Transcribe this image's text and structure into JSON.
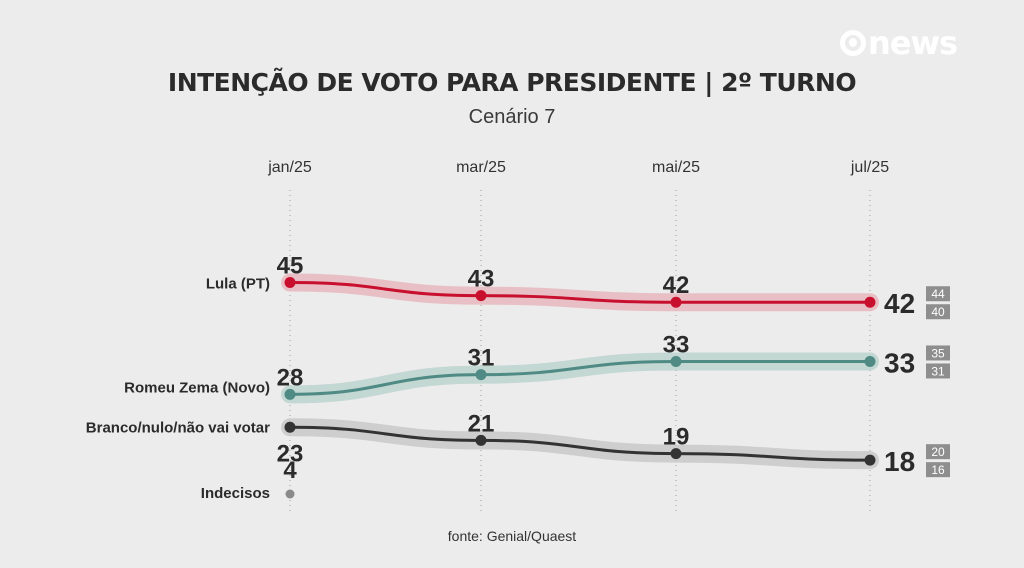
{
  "logo": {
    "text": "news"
  },
  "chart_data": {
    "type": "line",
    "title": "INTENÇÃO DE VOTO PARA PRESIDENTE | 2º TURNO",
    "subtitle": "Cenário 7",
    "source": "fonte: Genial/Quaest",
    "categories": [
      "jan/25",
      "mar/25",
      "mai/25",
      "jul/25"
    ],
    "ylim": [
      0,
      50
    ],
    "grid": "vertical-dotted",
    "series": [
      {
        "name": "Lula (PT)",
        "color": "#c8102e",
        "band": "#e8b7bd",
        "values": [
          45,
          43,
          42,
          42
        ],
        "range_last": {
          "high": "44",
          "low": "40"
        }
      },
      {
        "name": "Romeu Zema (Novo)",
        "color": "#4f8a84",
        "band": "#bcd3cf",
        "values": [
          28,
          31,
          33,
          33
        ],
        "range_last": {
          "high": "35",
          "low": "31"
        }
      },
      {
        "name": "Branco/nulo/não vai votar",
        "color": "#333333",
        "band": "#c9c9c9",
        "values": [
          23,
          21,
          19,
          18
        ],
        "range_last": {
          "high": "20",
          "low": "16"
        }
      }
    ],
    "extra_point": {
      "name": "Indecisos",
      "color": "#8a8a8a",
      "value": 4,
      "category": "jan/25"
    }
  }
}
